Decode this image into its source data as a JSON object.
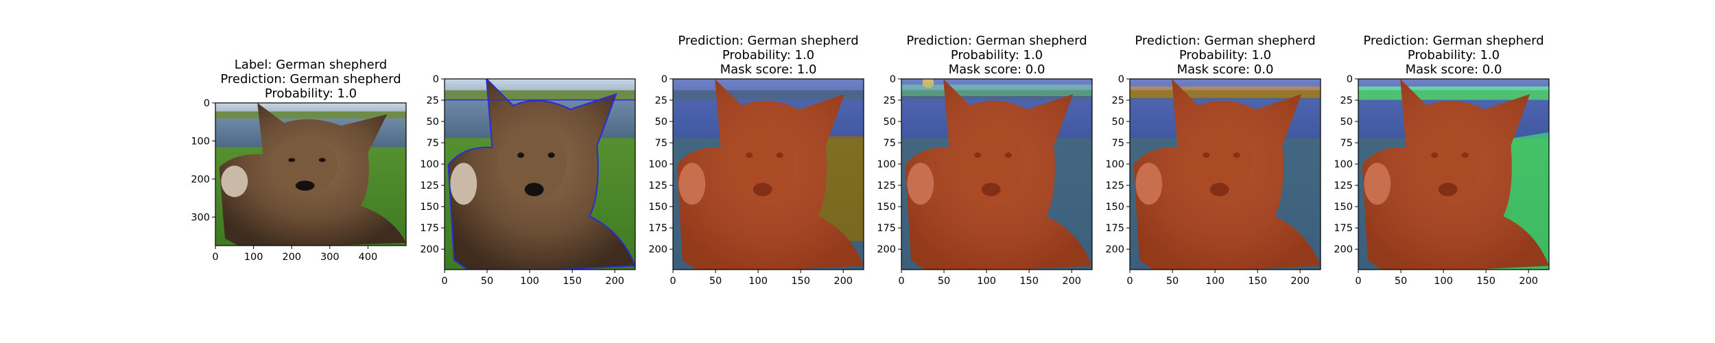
{
  "chart_data": [
    {
      "type": "image",
      "panel": "original",
      "title_lines": [
        "Label: German shepherd",
        "Prediction: German shepherd",
        "Probability: 1.0"
      ],
      "x_ticks": [
        0,
        100,
        200,
        300,
        400
      ],
      "y_ticks": [
        0,
        100,
        200,
        300
      ],
      "xlim": [
        0,
        500
      ],
      "ylim": [
        375,
        0
      ]
    },
    {
      "type": "image",
      "panel": "segment-boundaries",
      "title_lines": [],
      "x_ticks": [
        0,
        50,
        100,
        150,
        200
      ],
      "y_ticks": [
        0,
        25,
        50,
        75,
        100,
        125,
        150,
        175,
        200
      ],
      "xlim": [
        0,
        224
      ],
      "ylim": [
        224,
        0
      ]
    },
    {
      "type": "image",
      "panel": "mask-overlay",
      "title_lines": [
        "Prediction: German shepherd",
        "Probability: 1.0",
        "Mask score: 1.0"
      ],
      "x_ticks": [
        0,
        50,
        100,
        150,
        200
      ],
      "y_ticks": [
        0,
        25,
        50,
        75,
        100,
        125,
        150,
        175,
        200
      ],
      "xlim": [
        0,
        224
      ],
      "ylim": [
        224,
        0
      ]
    },
    {
      "type": "image",
      "panel": "mask-overlay",
      "title_lines": [
        "Prediction: German shepherd",
        "Probability: 1.0",
        "Mask score: 0.0"
      ],
      "x_ticks": [
        0,
        50,
        100,
        150,
        200
      ],
      "y_ticks": [
        0,
        25,
        50,
        75,
        100,
        125,
        150,
        175,
        200
      ],
      "xlim": [
        0,
        224
      ],
      "ylim": [
        224,
        0
      ]
    },
    {
      "type": "image",
      "panel": "mask-overlay",
      "title_lines": [
        "Prediction: German shepherd",
        "Probability: 1.0",
        "Mask score: 0.0"
      ],
      "x_ticks": [
        0,
        50,
        100,
        150,
        200
      ],
      "y_ticks": [
        0,
        25,
        50,
        75,
        100,
        125,
        150,
        175,
        200
      ],
      "xlim": [
        0,
        224
      ],
      "ylim": [
        224,
        0
      ]
    },
    {
      "type": "image",
      "panel": "mask-overlay",
      "title_lines": [
        "Prediction: German shepherd",
        "Probability: 1.0",
        "Mask score: 0.0"
      ],
      "x_ticks": [
        0,
        50,
        100,
        150,
        200
      ],
      "y_ticks": [
        0,
        25,
        50,
        75,
        100,
        125,
        150,
        175,
        200
      ],
      "xlim": [
        0,
        224
      ],
      "ylim": [
        224,
        0
      ]
    }
  ]
}
